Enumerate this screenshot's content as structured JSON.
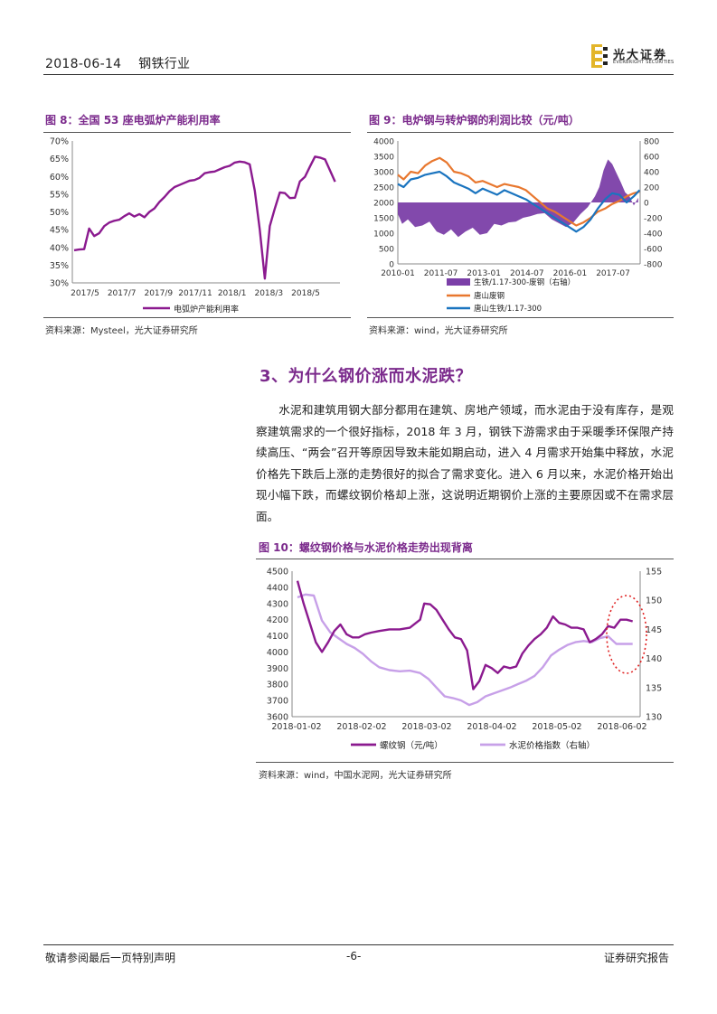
{
  "header": {
    "date": "2018-06-14",
    "industry": "钢铁行业",
    "logo_cn": "光大证券",
    "logo_en": "EVERBRIGHT SECURITIES"
  },
  "figures": {
    "fig8": {
      "title": "图 8：全国 53 座电弧炉产能利用率",
      "source": "资料来源：Mysteel，光大证券研究所"
    },
    "fig9": {
      "title": "图 9：电炉钢与转炉钢的利润比较（元/吨）",
      "source": "资料来源：wind，光大证券研究所"
    },
    "fig10": {
      "title": "图 10：螺纹钢价格与水泥价格走势出现背离",
      "source": "资料来源：wind，中国水泥网，光大证券研究所"
    }
  },
  "section": {
    "title": "3、为什么钢价涨而水泥跌？",
    "paragraph": "水泥和建筑用钢大部分都用在建筑、房地产领域，而水泥由于没有库存，是观察建筑需求的一个很好指标，2018 年 3 月，钢铁下游需求由于采暖季环保限产持续高压、“两会”召开等原因导致未能如期启动，进入 4 月需求开始集中释放，水泥价格先下跌后上涨的走势很好的拟合了需求变化。进入 6 月以来，水泥价格开始出现小幅下跌，而螺纹钢价格却上涨，这说明近期钢价上涨的主要原因或不在需求层面。"
  },
  "footer": {
    "left": "敬请参阅最后一页特别声明",
    "page": "-6-",
    "right": "证券研究报告"
  },
  "chart_data": [
    {
      "id": "fig8",
      "type": "line",
      "x_ticks": [
        "2017/5",
        "2017/7",
        "2017/9",
        "2017/11",
        "2018/1",
        "2018/3",
        "2018/5"
      ],
      "y_ticks": [
        "30%",
        "35%",
        "40%",
        "45%",
        "50%",
        "55%",
        "60%",
        "65%",
        "70%"
      ],
      "ylim": [
        30,
        70
      ],
      "unit": "%",
      "series": [
        {
          "name": "电弧炉产能利用率",
          "color": "#8b1a8f",
          "values": [
            39.2,
            39.4,
            39.5,
            45.3,
            43.2,
            44.0,
            46.0,
            47.0,
            47.5,
            47.8,
            48.8,
            49.6,
            48.7,
            49.4,
            48.5,
            50.0,
            51.0,
            52.8,
            54.2,
            55.8,
            57.0,
            57.6,
            58.2,
            58.8,
            59.0,
            59.6,
            60.9,
            61.2,
            61.4,
            62.0,
            62.6,
            63.0,
            63.9,
            64.2,
            64.0,
            63.4,
            56.0,
            45.0,
            31.2,
            46.0,
            51.0,
            55.5,
            55.3,
            53.9,
            54.0,
            58.6,
            59.9,
            62.8,
            65.6,
            65.3,
            64.8,
            61.7,
            58.5
          ]
        }
      ]
    },
    {
      "id": "fig9",
      "type": "line",
      "x_ticks": [
        "2010-01",
        "2011-07",
        "2013-01",
        "2014-07",
        "2016-01",
        "2017-07"
      ],
      "y_left_ticks": [
        "0",
        "500",
        "1000",
        "1500",
        "2000",
        "2500",
        "3000",
        "3500",
        "4000"
      ],
      "y_right_ticks": [
        "800",
        "600",
        "400",
        "200",
        "0",
        "-200",
        "-400",
        "-600",
        "-800"
      ],
      "ylim_left": [
        0,
        4000
      ],
      "ylim_right": [
        -800,
        800
      ],
      "x_range": [
        2010.0,
        2018.42
      ],
      "series": [
        {
          "name": "生铁/1.17-300-废钢（右轴）",
          "axis": "right",
          "type": "area",
          "color": "#7b3fa8",
          "x": [
            2010.0,
            2010.15,
            2010.35,
            2010.6,
            2010.85,
            2011.1,
            2011.35,
            2011.6,
            2011.85,
            2012.1,
            2012.35,
            2012.6,
            2012.85,
            2013.1,
            2013.35,
            2013.6,
            2013.85,
            2014.1,
            2014.35,
            2014.6,
            2014.85,
            2015.1,
            2015.35,
            2015.6,
            2015.85,
            2016.1,
            2016.35,
            2016.6,
            2016.85,
            2017.0,
            2017.15,
            2017.3,
            2017.45,
            2017.6,
            2017.75,
            2017.9,
            2018.05,
            2018.2,
            2018.35
          ],
          "values": [
            -150,
            -280,
            -220,
            -320,
            -300,
            -250,
            -380,
            -420,
            -350,
            -450,
            -380,
            -330,
            -420,
            -400,
            -280,
            -300,
            -260,
            -250,
            -200,
            -180,
            -150,
            -140,
            -220,
            -270,
            -320,
            -260,
            -150,
            -60,
            80,
            200,
            420,
            560,
            500,
            380,
            260,
            130,
            80,
            -40,
            60
          ]
        },
        {
          "name": "唐山废钢",
          "axis": "left",
          "type": "line",
          "color": "#e8772e",
          "x": [
            2010.0,
            2010.2,
            2010.45,
            2010.7,
            2010.95,
            2011.2,
            2011.45,
            2011.7,
            2011.95,
            2012.2,
            2012.45,
            2012.7,
            2012.95,
            2013.2,
            2013.45,
            2013.7,
            2013.95,
            2014.2,
            2014.45,
            2014.7,
            2014.95,
            2015.2,
            2015.45,
            2015.7,
            2015.95,
            2016.2,
            2016.45,
            2016.7,
            2016.95,
            2017.2,
            2017.45,
            2017.7,
            2017.95,
            2018.2,
            2018.4
          ],
          "values": [
            2900,
            2750,
            3000,
            2950,
            3200,
            3350,
            3450,
            3300,
            3000,
            2950,
            2850,
            2650,
            2700,
            2600,
            2500,
            2600,
            2550,
            2500,
            2400,
            2200,
            2000,
            1800,
            1700,
            1550,
            1400,
            1250,
            1350,
            1500,
            1700,
            1800,
            1950,
            2050,
            2200,
            2300,
            2350
          ]
        },
        {
          "name": "唐山生铁/1.17-300",
          "axis": "left",
          "type": "line",
          "color": "#1a74bf",
          "x": [
            2010.0,
            2010.2,
            2010.45,
            2010.7,
            2010.95,
            2011.2,
            2011.45,
            2011.7,
            2011.95,
            2012.2,
            2012.45,
            2012.7,
            2012.95,
            2013.2,
            2013.45,
            2013.7,
            2013.95,
            2014.2,
            2014.45,
            2014.7,
            2014.95,
            2015.2,
            2015.45,
            2015.7,
            2015.95,
            2016.2,
            2016.45,
            2016.7,
            2016.95,
            2017.2,
            2017.45,
            2017.7,
            2017.95,
            2018.2,
            2018.4
          ],
          "values": [
            2600,
            2500,
            2750,
            2800,
            2900,
            2950,
            3000,
            2850,
            2650,
            2550,
            2450,
            2300,
            2450,
            2350,
            2250,
            2400,
            2300,
            2200,
            2100,
            1950,
            1800,
            1650,
            1500,
            1350,
            1200,
            1050,
            1200,
            1450,
            1800,
            2100,
            2300,
            2250,
            2000,
            2200,
            2400
          ]
        }
      ],
      "legend": [
        "生铁/1.17-300-废钢（右轴）",
        "唐山废钢",
        "唐山生铁/1.17-300"
      ]
    },
    {
      "id": "fig10",
      "type": "line",
      "x_ticks": [
        "2018-01-02",
        "2018-02-02",
        "2018-03-02",
        "2018-04-02",
        "2018-05-02",
        "2018-06-02"
      ],
      "y_left_ticks": [
        "3600",
        "3700",
        "3800",
        "3900",
        "4000",
        "4100",
        "4200",
        "4300",
        "4400",
        "4500"
      ],
      "y_right_ticks": [
        "130",
        "135",
        "140",
        "145",
        "150",
        "155"
      ],
      "ylim_left": [
        3600,
        4500
      ],
      "ylim_right": [
        130,
        155
      ],
      "x_range": [
        0,
        165
      ],
      "series": [
        {
          "name": "螺纹钢（元/吨）",
          "axis": "left",
          "color": "#8b1a8f",
          "x": [
            0,
            3,
            6,
            9,
            12,
            15,
            18,
            21,
            24,
            27,
            30,
            33,
            36,
            40,
            45,
            50,
            55,
            60,
            62,
            65,
            68,
            71,
            74,
            77,
            80,
            83,
            86,
            89,
            92,
            95,
            98,
            101,
            104,
            107,
            110,
            113,
            116,
            119,
            122,
            125,
            128,
            131,
            134,
            137,
            140,
            143,
            146,
            149,
            152,
            155,
            158,
            161,
            164
          ],
          "values": [
            4440,
            4300,
            4180,
            4060,
            4000,
            4060,
            4130,
            4170,
            4110,
            4090,
            4090,
            4110,
            4120,
            4130,
            4140,
            4140,
            4150,
            4200,
            4300,
            4295,
            4260,
            4200,
            4140,
            4090,
            4080,
            4010,
            3770,
            3820,
            3920,
            3900,
            3870,
            3910,
            3900,
            3910,
            3990,
            4040,
            4080,
            4110,
            4150,
            4220,
            4180,
            4170,
            4150,
            4150,
            4140,
            4060,
            4080,
            4110,
            4160,
            4150,
            4200,
            4200,
            4190
          ]
        },
        {
          "name": "水泥价格指数（右轴）",
          "axis": "right",
          "color": "#c7a0e8",
          "x": [
            0,
            4,
            8,
            12,
            16,
            20,
            24,
            28,
            32,
            36,
            40,
            45,
            50,
            55,
            60,
            64,
            68,
            72,
            76,
            80,
            84,
            88,
            92,
            96,
            100,
            104,
            108,
            112,
            116,
            120,
            124,
            128,
            132,
            136,
            140,
            144,
            148,
            152,
            156,
            160,
            164
          ],
          "values": [
            150.5,
            151.0,
            150.8,
            146.5,
            144.5,
            143.5,
            142.5,
            141.8,
            140.8,
            139.5,
            138.5,
            138.0,
            137.8,
            137.9,
            137.5,
            136.5,
            135.0,
            133.5,
            133.2,
            132.8,
            132.0,
            132.5,
            133.5,
            134.0,
            134.5,
            135.0,
            135.6,
            136.2,
            137.0,
            138.5,
            140.5,
            141.5,
            142.3,
            142.8,
            143.0,
            142.8,
            143.5,
            143.8,
            142.5,
            142.5,
            142.5
          ]
        }
      ],
      "legend": [
        "螺纹钢（元/吨）",
        "水泥价格指数（右轴）"
      ]
    }
  ]
}
